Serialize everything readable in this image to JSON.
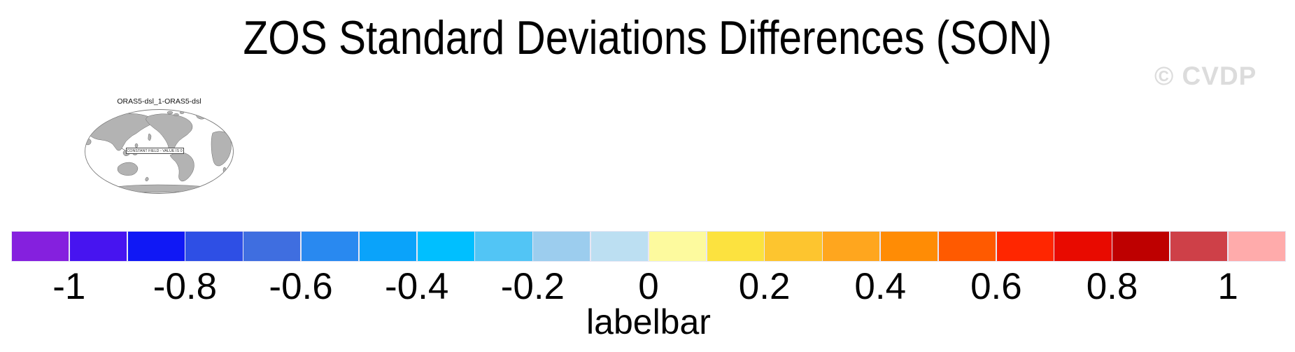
{
  "header": {
    "title": "ZOS Standard Deviations Differences (SON)",
    "watermark": "© CVDP"
  },
  "map_panel": {
    "title": "ORAS5-dsl_1-ORAS5-dsl",
    "note": "CONSTANT FIELD - VALUE IS 0"
  },
  "colorbar": {
    "label": "labelbar",
    "tick_labels": [
      "-1",
      "-0.8",
      "-0.6",
      "-0.4",
      "-0.2",
      "0",
      "0.2",
      "0.4",
      "0.6",
      "0.8",
      "1"
    ],
    "colors": [
      "#8520DE",
      "#4714F0",
      "#1018F5",
      "#2E4FE5",
      "#3F6EE0",
      "#2989F0",
      "#0AA3FA",
      "#00BFFF",
      "#52C5F5",
      "#9CCDEE",
      "#BCDFF2",
      "#FDFA9E",
      "#FCE23F",
      "#FDC52F",
      "#FFA61E",
      "#FF8C05",
      "#FF5A00",
      "#FF2600",
      "#E80A00",
      "#BE0000",
      "#CE4048",
      "#FFABAB"
    ],
    "separator_color": "#E7E7F4"
  },
  "colors": {
    "watermark_gray": "#DCDCDC",
    "land_gray": "#B3B3B3",
    "coastline_gray": "#696969",
    "text_black": "#000000"
  },
  "chart_data": {
    "type": "heatmap",
    "title": "ZOS Standard Deviations Differences (SON)",
    "season": "SON",
    "panels": [
      {
        "name": "ORAS5-dsl_1-ORAS5-dsl",
        "annotation": "CONSTANT FIELD - VALUE IS 0",
        "constant_value": 0,
        "projection": "global oval map, Pacific-centered"
      }
    ],
    "colorbar": {
      "label": "labelbar",
      "ticks": [
        -1,
        -0.8,
        -0.6,
        -0.4,
        -0.2,
        0,
        0.2,
        0.4,
        0.6,
        0.8,
        1
      ],
      "level_min": -1.1,
      "level_max": 1.1,
      "level_step": 0.1,
      "n_segments": 22,
      "segment_colors": [
        "#8520DE",
        "#4714F0",
        "#1018F5",
        "#2E4FE5",
        "#3F6EE0",
        "#2989F0",
        "#0AA3FA",
        "#00BFFF",
        "#52C5F5",
        "#9CCDEE",
        "#BCDFF2",
        "#FDFA9E",
        "#FCE23F",
        "#FDC52F",
        "#FFA61E",
        "#FF8C05",
        "#FF5A00",
        "#FF2600",
        "#E80A00",
        "#BE0000",
        "#CE4048",
        "#FFABAB"
      ],
      "orientation": "horizontal",
      "position": "bottom, full width"
    },
    "watermark": "© CVDP",
    "legend_position": "none",
    "grid": false
  }
}
